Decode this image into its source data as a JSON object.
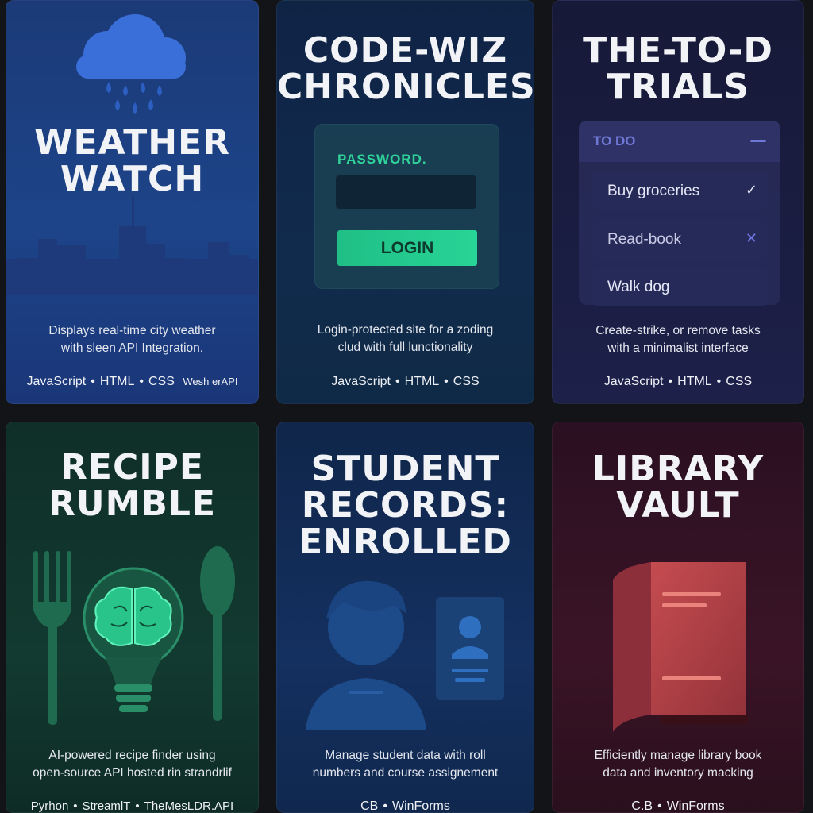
{
  "cards": [
    {
      "title_lines": [
        "WEATHER",
        "WATCH"
      ],
      "description_lines": [
        "Displays real-time city weather",
        "with sleen API Integration."
      ],
      "tech": [
        "JavaScript",
        "HTML",
        "CSS"
      ],
      "tech_extra": "Wesh erAPI",
      "icon": "rain-cloud-icon",
      "accent": "#3b6fd6"
    },
    {
      "title_lines": [
        "CODE-WIZ",
        "CHRONICLES"
      ],
      "description_lines": [
        "Login-protected site for a zoding",
        "clud with full lunctionality"
      ],
      "tech": [
        "JavaScript",
        "HTML",
        "CSS"
      ],
      "login": {
        "label": "PASSWORD.",
        "button": "LOGIN"
      },
      "accent": "#28d497"
    },
    {
      "title_lines": [
        "THE-TO-D",
        "TRIALS"
      ],
      "description_lines": [
        "Create-strike, or remove tasks",
        "with a minimalist interface"
      ],
      "tech": [
        "JavaScript",
        "HTML",
        "CSS"
      ],
      "todo": {
        "header": "TO DO",
        "items": [
          {
            "text": "Buy groceries",
            "mark": "✓"
          },
          {
            "text": "Read-book",
            "mark": "✕"
          },
          {
            "text": "Walk dog",
            "mark": ""
          }
        ]
      },
      "accent": "#7078d6"
    },
    {
      "title_lines": [
        "RECIPE",
        "RUMBLE"
      ],
      "description_lines": [
        "AI-powered recipe finder using",
        "open-source API hosted rin strandrlif"
      ],
      "tech": [
        "Pyrhon",
        "StreamlT",
        "TheMesLDR.API"
      ],
      "icon": "lightbulb-brain-icon",
      "accent": "#3be0a8"
    },
    {
      "title_lines": [
        "STUDENT",
        "RECORDS:",
        "ENROLLED"
      ],
      "description_lines": [
        "Manage student data with roll",
        "numbers and course assignement"
      ],
      "tech": [
        "CB",
        "WinForms"
      ],
      "icon": "student-avatar-icon",
      "accent": "#2e6bb0"
    },
    {
      "title_lines": [
        "LIBRARY",
        "VAULT"
      ],
      "description_lines": [
        "Efficiently manage library book",
        "data and inventory macking"
      ],
      "tech": [
        "C.B",
        "WinForms"
      ],
      "icon": "book-icon",
      "accent": "#d9554f"
    }
  ]
}
